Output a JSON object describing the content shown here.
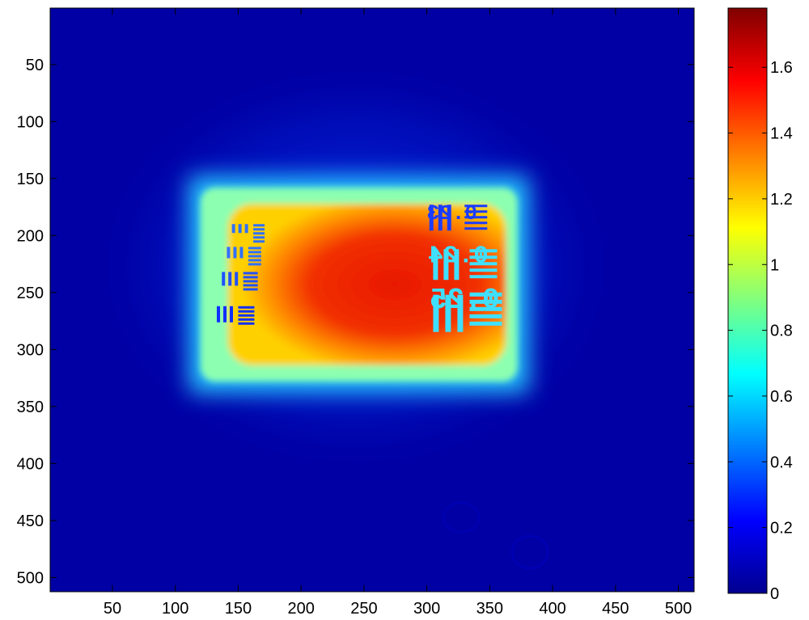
{
  "chart_data": {
    "type": "heatmap",
    "title": "",
    "xlabel": "",
    "ylabel": "",
    "xlim": [
      0.5,
      512.5
    ],
    "ylim": [
      0.5,
      512.5
    ],
    "y_axis_direction": "reversed",
    "x_ticks": [
      50,
      100,
      150,
      200,
      250,
      300,
      350,
      400,
      450,
      500
    ],
    "y_ticks": [
      50,
      100,
      150,
      200,
      250,
      300,
      350,
      400,
      450,
      500
    ],
    "colormap": "jet",
    "colorbar": {
      "range": [
        0,
        1.78
      ],
      "ticks": [
        0,
        0.2,
        0.4,
        0.6,
        0.8,
        1,
        1.2,
        1.4,
        1.6
      ],
      "tick_labels": [
        "0",
        "0.2",
        "0.4",
        "0.6",
        "0.8",
        "1",
        "1.2",
        "1.4",
        "1.6"
      ]
    },
    "background_value": 0.1,
    "bright_region": {
      "x_range": [
        120,
        372
      ],
      "y_range": [
        158,
        328
      ],
      "peak_value": 1.62,
      "edge_value": 0.6
    },
    "target_labels": [
      {
        "text": "0.25",
        "x": 330,
        "y": 255
      },
      {
        "text": "0.24",
        "x": 325,
        "y": 215
      },
      {
        "text": "0.23",
        "x": 320,
        "y": 177
      }
    ]
  }
}
